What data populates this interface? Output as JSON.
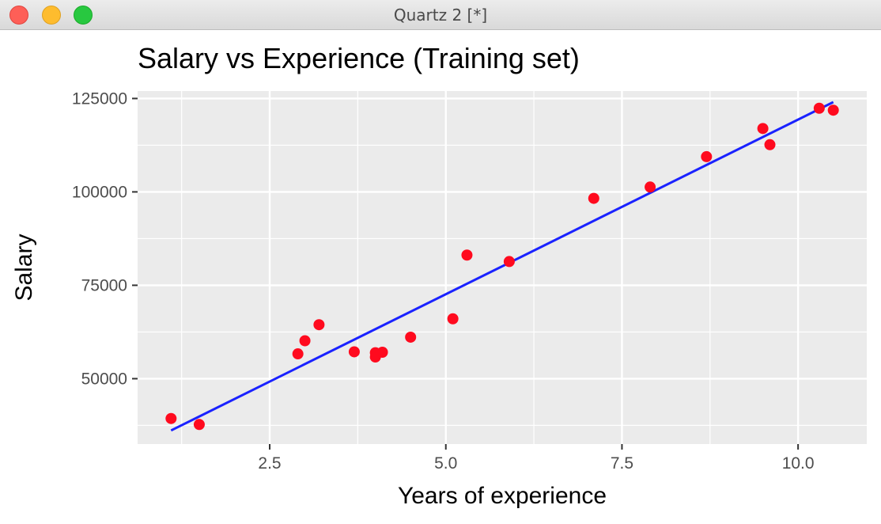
{
  "window": {
    "title": "Quartz 2 [*]"
  },
  "chart_data": {
    "type": "scatter",
    "title": "Salary vs Experience (Training set)",
    "xlabel": "Years of experience",
    "ylabel": "Salary",
    "xlim": [
      0.625,
      10.975
    ],
    "ylim": [
      32500,
      127000
    ],
    "xticks": [
      2.5,
      5.0,
      7.5,
      10.0
    ],
    "xtick_labels": [
      "2.5",
      "5.0",
      "7.5",
      "10.0"
    ],
    "yticks": [
      50000,
      75000,
      100000,
      125000
    ],
    "ytick_labels": [
      "50000",
      "75000",
      "100000",
      "125000"
    ],
    "x_minor": [
      1.25,
      3.75,
      6.25,
      8.75
    ],
    "y_minor": [
      37500,
      62500,
      87500,
      112500
    ],
    "grid": true,
    "series": [
      {
        "type": "scatter",
        "color": "#ff0a1e",
        "x": [
          1.1,
          1.5,
          2.9,
          3.0,
          3.2,
          3.7,
          4.0,
          4.0,
          4.1,
          4.5,
          5.1,
          5.3,
          5.9,
          7.1,
          7.9,
          8.7,
          9.5,
          9.6,
          10.3,
          10.5
        ],
        "y": [
          39343,
          37731,
          56642,
          60150,
          64445,
          57189,
          55794,
          56957,
          57081,
          61111,
          66029,
          83088,
          81363,
          98273,
          101302,
          109431,
          116969,
          112635,
          122391,
          121872
        ]
      },
      {
        "type": "line",
        "color": "#1a22ff",
        "x": [
          1.1,
          10.5
        ],
        "y": [
          36140,
          124040
        ]
      }
    ]
  }
}
